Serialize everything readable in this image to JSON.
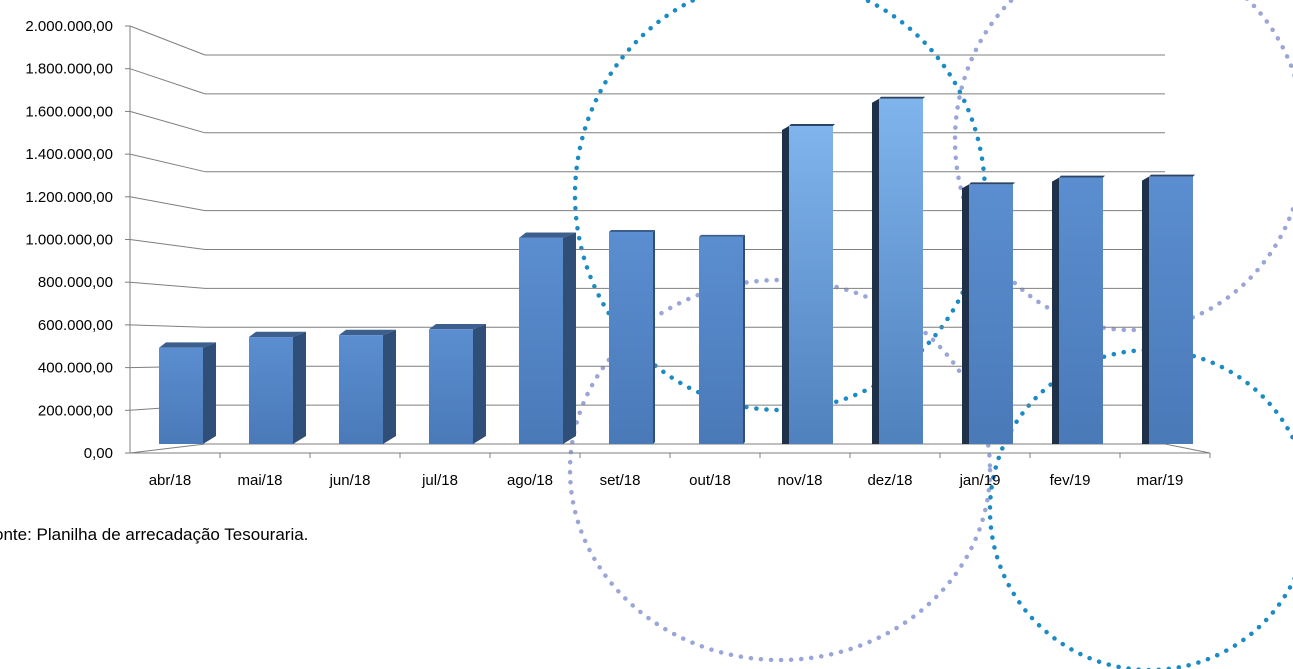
{
  "chart_data": {
    "type": "bar",
    "categories": [
      "abr/18",
      "mai/18",
      "jun/18",
      "jul/18",
      "ago/18",
      "set/18",
      "out/18",
      "nov/18",
      "dez/18",
      "jan/19",
      "fev/19",
      "mar/19"
    ],
    "values": [
      500000,
      555000,
      565000,
      595000,
      1065000,
      1095000,
      1070000,
      1640000,
      1780000,
      1340000,
      1375000,
      1380000
    ],
    "ylim": [
      0,
      2000000
    ],
    "yticks": [
      "0,00",
      "200.000,00",
      "400.000,00",
      "600.000,00",
      "800.000,00",
      "1.000.000,00",
      "1.200.000,00",
      "1.400.000,00",
      "1.600.000,00",
      "1.800.000,00",
      "2.000.000,00"
    ],
    "grid": true,
    "legend": "none",
    "colors": {
      "front": "#4f81bd",
      "side": "#2f4f78",
      "dark_side": "#1f3049",
      "light_top": "#7fb0e8"
    }
  },
  "source_note": "onte: Planilha de arrecadação Tesouraria.",
  "decoration": {
    "circle_color_1": "#1a8bc4",
    "circle_color_2": "#9aa6d8"
  }
}
